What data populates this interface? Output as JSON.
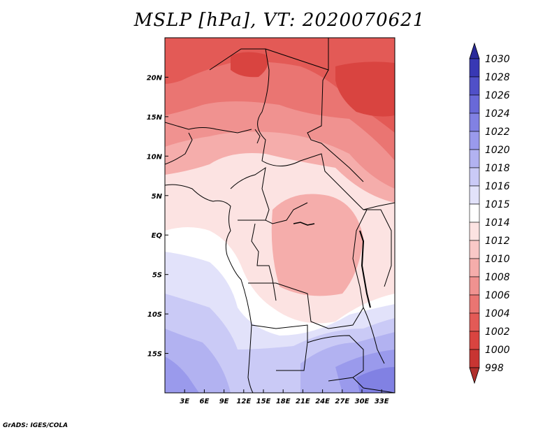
{
  "title": "MSLP [hPa], VT: 2020070621",
  "map": {
    "lon_range": [
      0,
      35
    ],
    "lat_range": [
      -20,
      25
    ],
    "x_ticks": [
      {
        "lon": 3,
        "label": "3E"
      },
      {
        "lon": 6,
        "label": "6E"
      },
      {
        "lon": 9,
        "label": "9E"
      },
      {
        "lon": 12,
        "label": "12E"
      },
      {
        "lon": 15,
        "label": "15E"
      },
      {
        "lon": 18,
        "label": "18E"
      },
      {
        "lon": 21,
        "label": "21E"
      },
      {
        "lon": 24,
        "label": "24E"
      },
      {
        "lon": 27,
        "label": "27E"
      },
      {
        "lon": 30,
        "label": "30E"
      },
      {
        "lon": 33,
        "label": "33E"
      }
    ],
    "y_ticks": [
      {
        "lat": 20,
        "label": "20N"
      },
      {
        "lat": 15,
        "label": "15N"
      },
      {
        "lat": 10,
        "label": "10N"
      },
      {
        "lat": 5,
        "label": "5N"
      },
      {
        "lat": 0,
        "label": "EQ"
      },
      {
        "lat": -5,
        "label": "5S"
      },
      {
        "lat": -10,
        "label": "10S"
      },
      {
        "lat": -15,
        "label": "15S"
      }
    ]
  },
  "colorbar": {
    "levels": [
      {
        "label": "998",
        "color": "#b0302c"
      },
      {
        "label": "1000",
        "color": "#c83532"
      },
      {
        "label": "1002",
        "color": "#d94440"
      },
      {
        "label": "1004",
        "color": "#e35a56"
      },
      {
        "label": "1006",
        "color": "#ea7572"
      },
      {
        "label": "1008",
        "color": "#f09290"
      },
      {
        "label": "1010",
        "color": "#f5adab"
      },
      {
        "label": "1012",
        "color": "#f9c8c7"
      },
      {
        "label": "1014",
        "color": "#fce3e2"
      },
      {
        "label": "1015",
        "color": "#ffffff"
      },
      {
        "label": "1016",
        "color": "#e2e2fa"
      },
      {
        "label": "1018",
        "color": "#cacaf6"
      },
      {
        "label": "1020",
        "color": "#b2b2f1"
      },
      {
        "label": "1022",
        "color": "#9a9aec"
      },
      {
        "label": "1024",
        "color": "#8181e3"
      },
      {
        "label": "1026",
        "color": "#6969d8"
      },
      {
        "label": "1028",
        "color": "#5050c8"
      },
      {
        "label": "1030",
        "color": "#3838b4"
      }
    ],
    "top_arrow_color": "#2a2a9a"
  },
  "credit": "GrADS: IGES/COLA"
}
